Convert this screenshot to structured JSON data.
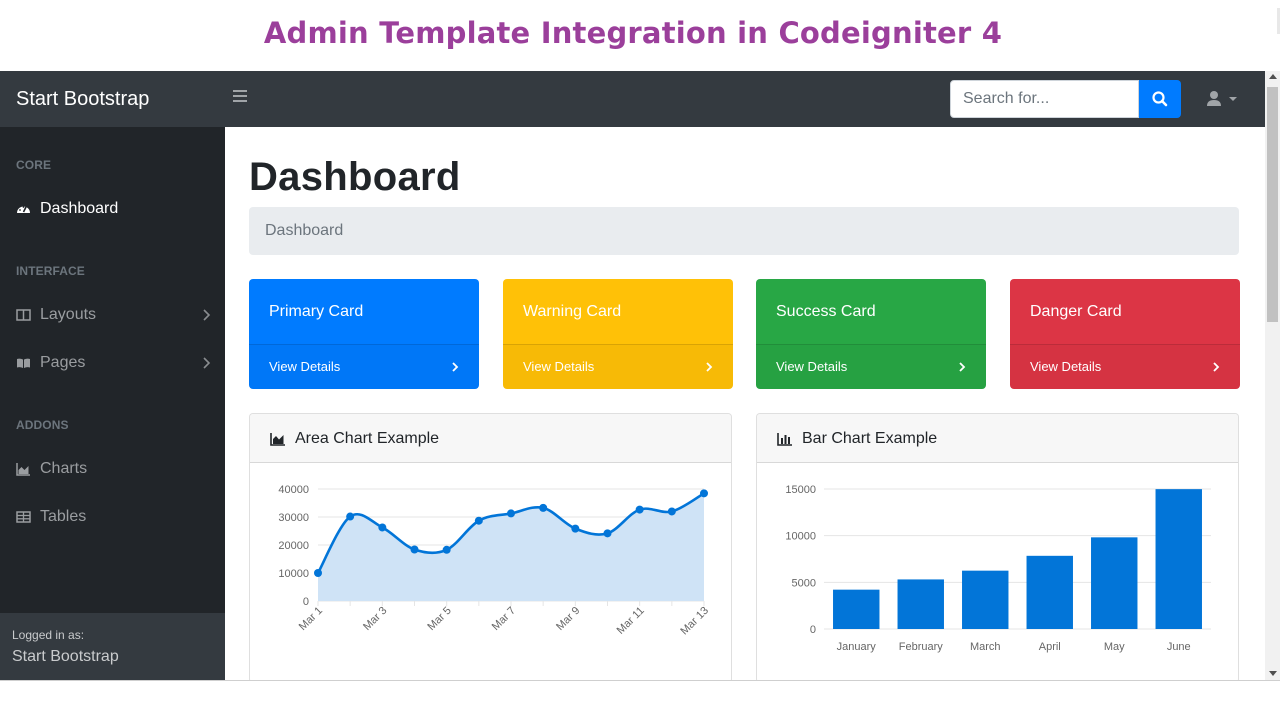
{
  "banner": {
    "title": "Admin Template Integration in Codeigniter 4"
  },
  "navbar": {
    "brand": "Start Bootstrap",
    "search": {
      "placeholder": "Search for...",
      "value": ""
    }
  },
  "sidebar": {
    "sections": [
      {
        "heading": "Core",
        "items": [
          {
            "label": "Dashboard",
            "icon": "tachometer-icon",
            "active": true,
            "has_submenu": false
          }
        ]
      },
      {
        "heading": "Interface",
        "items": [
          {
            "label": "Layouts",
            "icon": "columns-icon",
            "has_submenu": true
          },
          {
            "label": "Pages",
            "icon": "book-open-icon",
            "has_submenu": true
          }
        ]
      },
      {
        "heading": "Addons",
        "items": [
          {
            "label": "Charts",
            "icon": "area-chart-icon",
            "has_submenu": false
          },
          {
            "label": "Tables",
            "icon": "table-icon",
            "has_submenu": false
          }
        ]
      }
    ],
    "footer": {
      "small": "Logged in as:",
      "name": "Start Bootstrap"
    }
  },
  "main": {
    "title": "Dashboard",
    "breadcrumb": "Dashboard",
    "cards": [
      {
        "title": "Primary Card",
        "link": "View Details",
        "color": "#007bff"
      },
      {
        "title": "Warning Card",
        "link": "View Details",
        "color": "#ffc107"
      },
      {
        "title": "Success Card",
        "link": "View Details",
        "color": "#28a745"
      },
      {
        "title": "Danger Card",
        "link": "View Details",
        "color": "#dc3545"
      }
    ],
    "area_chart_title": "Area Chart Example",
    "bar_chart_title": "Bar Chart Example"
  },
  "chart_data": [
    {
      "type": "area",
      "x": [
        "Mar 1",
        "Mar 2",
        "Mar 3",
        "Mar 4",
        "Mar 5",
        "Mar 6",
        "Mar 7",
        "Mar 8",
        "Mar 9",
        "Mar 10",
        "Mar 11",
        "Mar 12",
        "Mar 13"
      ],
      "x_tick_labels": [
        "Mar 1",
        "Mar 3",
        "Mar 5",
        "Mar 7",
        "Mar 9",
        "Mar 11",
        "Mar 13"
      ],
      "values": [
        10000,
        30162,
        26263,
        18394,
        18287,
        28682,
        31274,
        33259,
        25849,
        24159,
        32651,
        31984,
        38451
      ],
      "ylim": [
        0,
        40000
      ],
      "y_ticks": [
        0,
        10000,
        20000,
        30000,
        40000
      ],
      "line_color": "#0275d8",
      "fill_color": "#cfe3f6",
      "grid": true
    },
    {
      "type": "bar",
      "categories": [
        "January",
        "February",
        "March",
        "April",
        "May",
        "June"
      ],
      "values": [
        4215,
        5312,
        6251,
        7841,
        9821,
        14984
      ],
      "ylim": [
        0,
        15000
      ],
      "y_ticks": [
        0,
        5000,
        10000,
        15000
      ],
      "bar_color": "#0275d8",
      "grid": true
    }
  ]
}
